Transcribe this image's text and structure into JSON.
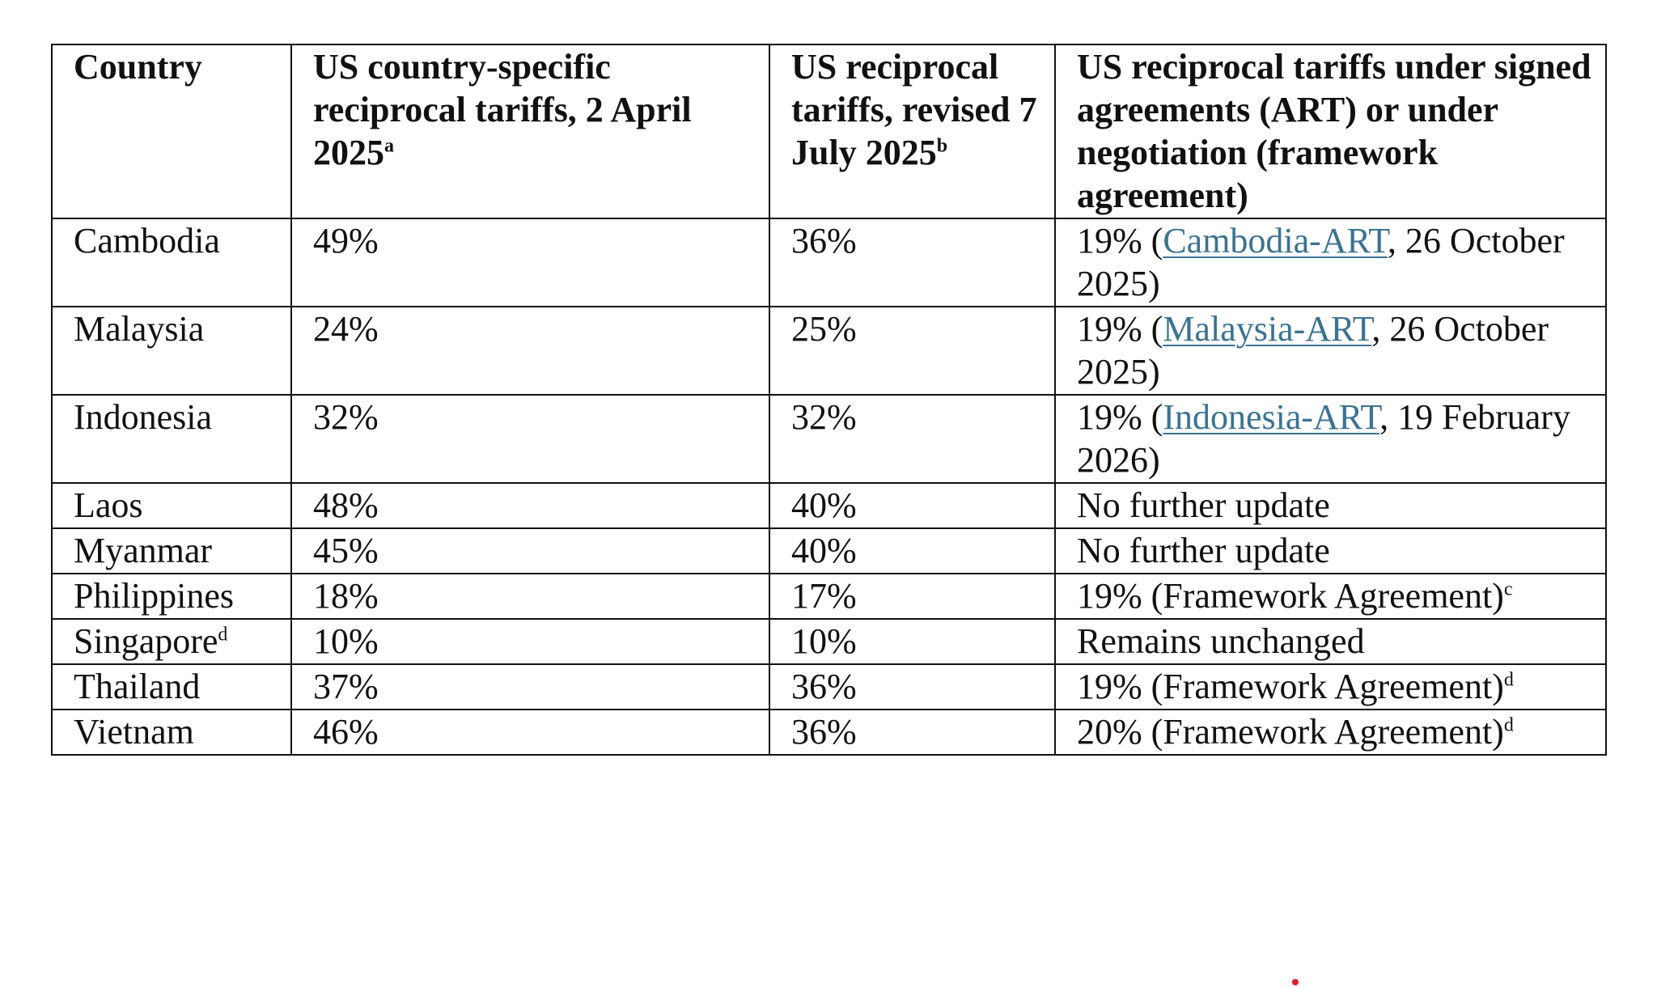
{
  "table": {
    "headers": {
      "country": "Country",
      "april": {
        "text": "US country-specific reciprocal tariffs, 2 April 2025",
        "note": "a"
      },
      "july": {
        "text": "US reciprocal tariffs, revised 7 July 2025",
        "note": "b"
      },
      "agreements": {
        "text": "US reciprocal tariffs under signed agreements (ART) or under negotiation (framework agreement)"
      }
    },
    "rows": [
      {
        "country": "Cambodia",
        "country_note": "",
        "april": "49%",
        "july": "36%",
        "agreement": {
          "pre": "19% (",
          "link": "Cambodia-ART",
          "post": ", 26 October 2025)",
          "note": ""
        }
      },
      {
        "country": "Malaysia",
        "country_note": "",
        "april": "24%",
        "july": "25%",
        "agreement": {
          "pre": "19% (",
          "link": "Malaysia-ART",
          "post": ", 26 October 2025)",
          "note": ""
        }
      },
      {
        "country": "Indonesia",
        "country_note": "",
        "april": "32%",
        "july": "32%",
        "agreement": {
          "pre": "19% (",
          "link": "Indonesia-ART",
          "post": ", 19 February 2026)",
          "note": ""
        }
      },
      {
        "country": "Laos",
        "country_note": "",
        "april": "48%",
        "july": "40%",
        "agreement": {
          "pre": "No further update",
          "link": "",
          "post": "",
          "note": ""
        }
      },
      {
        "country": "Myanmar",
        "country_note": "",
        "april": "45%",
        "july": "40%",
        "agreement": {
          "pre": "No further update",
          "link": "",
          "post": "",
          "note": ""
        }
      },
      {
        "country": "Philippines",
        "country_note": "",
        "april": "18%",
        "july": "17%",
        "agreement": {
          "pre": "19% (Framework Agreement)",
          "link": "",
          "post": "",
          "note": "c"
        }
      },
      {
        "country": "Singapore",
        "country_note": "d",
        "april": "10%",
        "july": "10%",
        "agreement": {
          "pre": "Remains unchanged",
          "link": "",
          "post": "",
          "note": ""
        }
      },
      {
        "country": "Thailand",
        "country_note": "",
        "april": "37%",
        "july": "36%",
        "agreement": {
          "pre": "19% (Framework Agreement)",
          "link": "",
          "post": "",
          "note": "d"
        }
      },
      {
        "country": "Vietnam",
        "country_note": "",
        "april": "46%",
        "july": "36%",
        "agreement": {
          "pre": "20% (Framework Agreement)",
          "link": "",
          "post": "",
          "note": "d"
        }
      }
    ]
  },
  "colors": {
    "link": "#3c7290",
    "border": "#111111",
    "stray_dot": "#e01e2a"
  }
}
